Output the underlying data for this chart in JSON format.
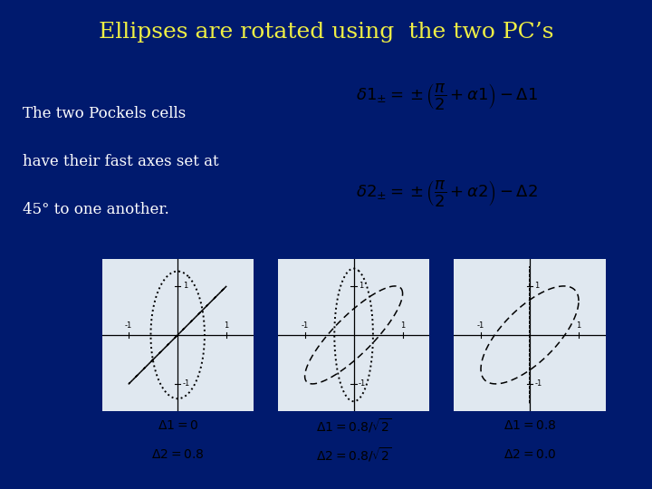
{
  "title": "Ellipses are rotated using  the two PC’s",
  "title_color": "#EFEF44",
  "bg_color": "#001a6e",
  "text_color": "#FFFFFF",
  "body_text_line1": "The two Pockels cells",
  "body_text_line2": "have their fast axes set at",
  "body_text_line3": "45° to one another.",
  "eq_box_color": "#C8CCD8",
  "eq_box_edge": "#999999",
  "plot_bg_color": "#E0E8F0",
  "plot_cases": [
    {
      "d1": 0.0,
      "d2": 0.8,
      "label1": "$\\Delta 1 = 0$",
      "label2": "$\\Delta 2 = 0.8$"
    },
    {
      "d1": 0.566,
      "d2": 0.566,
      "label1": "$\\Delta 1 = 0.8/\\sqrt{2}$",
      "label2": "$\\Delta 2 = 0.8/\\sqrt{2}$"
    },
    {
      "d1": 0.8,
      "d2": 0.0,
      "label1": "$\\Delta 1 = 0.8$",
      "label2": "$\\Delta 2 = 0.0$"
    }
  ],
  "title_fontsize": 18,
  "body_fontsize": 12,
  "eq_fontsize": 13,
  "label_fontsize": 10
}
